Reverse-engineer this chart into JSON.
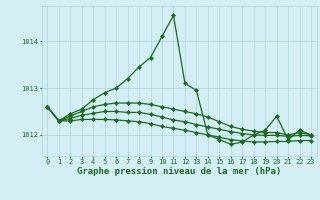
{
  "title": "Graphe pression niveau de la mer (hPa)",
  "background_color": "#d4eef5",
  "grid_color": "#aed4dc",
  "line_color": "#1a6b1a",
  "xlim": [
    -0.5,
    23.5
  ],
  "ylim": [
    1011.55,
    1014.75
  ],
  "yticks": [
    1012,
    1013,
    1014
  ],
  "xticks": [
    0,
    1,
    2,
    3,
    4,
    5,
    6,
    7,
    8,
    9,
    10,
    11,
    12,
    13,
    14,
    15,
    16,
    17,
    18,
    19,
    20,
    21,
    22,
    23
  ],
  "series": [
    {
      "x": [
        0,
        1,
        2,
        3,
        4,
        5,
        6,
        7,
        8,
        9,
        10,
        11,
        12,
        13,
        14,
        15,
        16,
        17,
        18,
        19,
        20,
        21,
        22,
        23
      ],
      "y": [
        1012.6,
        1012.3,
        1012.45,
        1012.55,
        1012.75,
        1012.9,
        1013.0,
        1013.2,
        1013.45,
        1013.65,
        1014.1,
        1014.55,
        1013.1,
        1012.95,
        1012.0,
        1011.9,
        1011.8,
        1011.85,
        1012.0,
        1012.1,
        1012.4,
        1011.9,
        1012.1,
        1012.0
      ]
    },
    {
      "x": [
        0,
        1,
        2,
        3,
        4,
        5,
        6,
        7,
        8,
        9,
        10,
        11,
        12,
        13,
        14,
        15,
        16,
        17,
        18,
        19,
        20,
        21,
        22,
        23
      ],
      "y": [
        1012.6,
        1012.3,
        1012.4,
        1012.5,
        1012.6,
        1012.65,
        1012.68,
        1012.68,
        1012.68,
        1012.65,
        1012.6,
        1012.55,
        1012.5,
        1012.45,
        1012.38,
        1012.28,
        1012.18,
        1012.12,
        1012.08,
        1012.05,
        1012.05,
        1012.0,
        1012.05,
        1012.0
      ]
    },
    {
      "x": [
        0,
        1,
        2,
        3,
        4,
        5,
        6,
        7,
        8,
        9,
        10,
        11,
        12,
        13,
        14,
        15,
        16,
        17,
        18,
        19,
        20,
        21,
        22,
        23
      ],
      "y": [
        1012.6,
        1012.3,
        1012.35,
        1012.42,
        1012.46,
        1012.5,
        1012.5,
        1012.48,
        1012.48,
        1012.44,
        1012.38,
        1012.32,
        1012.28,
        1012.22,
        1012.17,
        1012.12,
        1012.07,
        1012.03,
        1012.0,
        1011.99,
        1011.99,
        1011.97,
        1011.99,
        1011.98
      ]
    },
    {
      "x": [
        0,
        1,
        2,
        3,
        4,
        5,
        6,
        7,
        8,
        9,
        10,
        11,
        12,
        13,
        14,
        15,
        16,
        17,
        18,
        19,
        20,
        21,
        22,
        23
      ],
      "y": [
        1012.6,
        1012.3,
        1012.3,
        1012.33,
        1012.33,
        1012.33,
        1012.32,
        1012.3,
        1012.28,
        1012.24,
        1012.18,
        1012.14,
        1012.1,
        1012.05,
        1012.0,
        1011.95,
        1011.9,
        1011.87,
        1011.85,
        1011.85,
        1011.86,
        1011.86,
        1011.88,
        1011.88
      ]
    }
  ],
  "marker": "D",
  "marker_size": 2.2,
  "line_width": 0.9,
  "title_fontsize": 6.5,
  "tick_fontsize": 5.0,
  "title_color": "#1a6b1a",
  "tick_color": "#1a6b1a"
}
